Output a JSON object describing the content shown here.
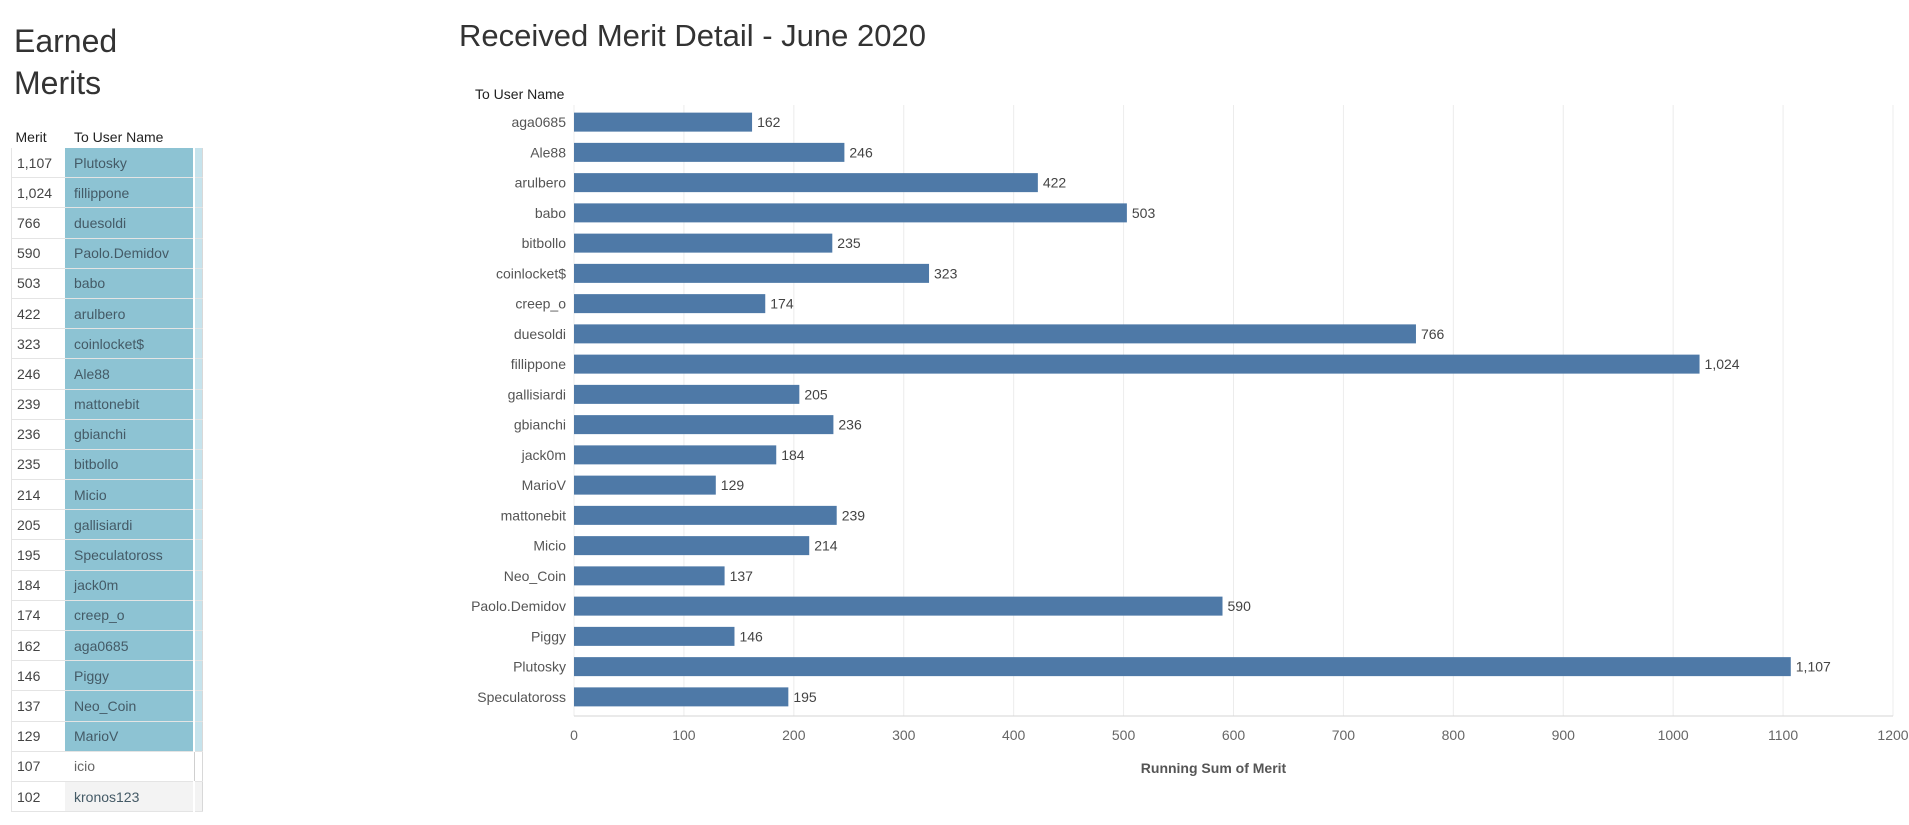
{
  "left_panel": {
    "title": "Earned Merits",
    "columns": {
      "merit": "Merit",
      "user": "To User Name"
    },
    "rows": [
      {
        "merit": "1,107",
        "user": "Plutosky",
        "style": "highlight"
      },
      {
        "merit": "1,024",
        "user": "fillippone",
        "style": "highlight"
      },
      {
        "merit": "766",
        "user": "duesoldi",
        "style": "highlight"
      },
      {
        "merit": "590",
        "user": "Paolo.Demidov",
        "style": "highlight"
      },
      {
        "merit": "503",
        "user": "babo",
        "style": "highlight"
      },
      {
        "merit": "422",
        "user": "arulbero",
        "style": "highlight"
      },
      {
        "merit": "323",
        "user": "coinlocket$",
        "style": "highlight"
      },
      {
        "merit": "246",
        "user": "Ale88",
        "style": "highlight"
      },
      {
        "merit": "239",
        "user": "mattonebit",
        "style": "highlight"
      },
      {
        "merit": "236",
        "user": "gbianchi",
        "style": "highlight"
      },
      {
        "merit": "235",
        "user": "bitbollo",
        "style": "highlight"
      },
      {
        "merit": "214",
        "user": "Micio",
        "style": "highlight"
      },
      {
        "merit": "205",
        "user": "gallisiardi",
        "style": "highlight"
      },
      {
        "merit": "195",
        "user": "Speculatoross",
        "style": "highlight"
      },
      {
        "merit": "184",
        "user": "jack0m",
        "style": "highlight"
      },
      {
        "merit": "174",
        "user": "creep_o",
        "style": "highlight"
      },
      {
        "merit": "162",
        "user": "aga0685",
        "style": "highlight"
      },
      {
        "merit": "146",
        "user": "Piggy",
        "style": "highlight"
      },
      {
        "merit": "137",
        "user": "Neo_Coin",
        "style": "highlight"
      },
      {
        "merit": "129",
        "user": "MarioV",
        "style": "highlight"
      },
      {
        "merit": "107",
        "user": "icio",
        "style": "plain"
      },
      {
        "merit": "102",
        "user": "kronos123",
        "style": "muted"
      }
    ]
  },
  "chart_data": {
    "type": "bar",
    "orientation": "horizontal",
    "title": "Received Merit Detail - June 2020",
    "row_header": "To User Name",
    "xlabel": "Running Sum of Merit",
    "ylabel": "",
    "xlim": [
      0,
      1200
    ],
    "xticks": [
      0,
      100,
      200,
      300,
      400,
      500,
      600,
      700,
      800,
      900,
      1000,
      1100,
      1200
    ],
    "grid": "vertical",
    "bar_color": "#4e79a7",
    "categories": [
      "aga0685",
      "Ale88",
      "arulbero",
      "babo",
      "bitbollo",
      "coinlocket$",
      "creep_o",
      "duesoldi",
      "fillippone",
      "gallisiardi",
      "gbianchi",
      "jack0m",
      "MarioV",
      "mattonebit",
      "Micio",
      "Neo_Coin",
      "Paolo.Demidov",
      "Piggy",
      "Plutosky",
      "Speculatoross"
    ],
    "values": [
      162,
      246,
      422,
      503,
      235,
      323,
      174,
      766,
      1024,
      205,
      236,
      184,
      129,
      239,
      214,
      137,
      590,
      146,
      1107,
      195
    ],
    "value_labels": [
      "162",
      "246",
      "422",
      "503",
      "235",
      "323",
      "174",
      "766",
      "1,024",
      "205",
      "236",
      "184",
      "129",
      "239",
      "214",
      "137",
      "590",
      "146",
      "1,107",
      "195"
    ]
  }
}
